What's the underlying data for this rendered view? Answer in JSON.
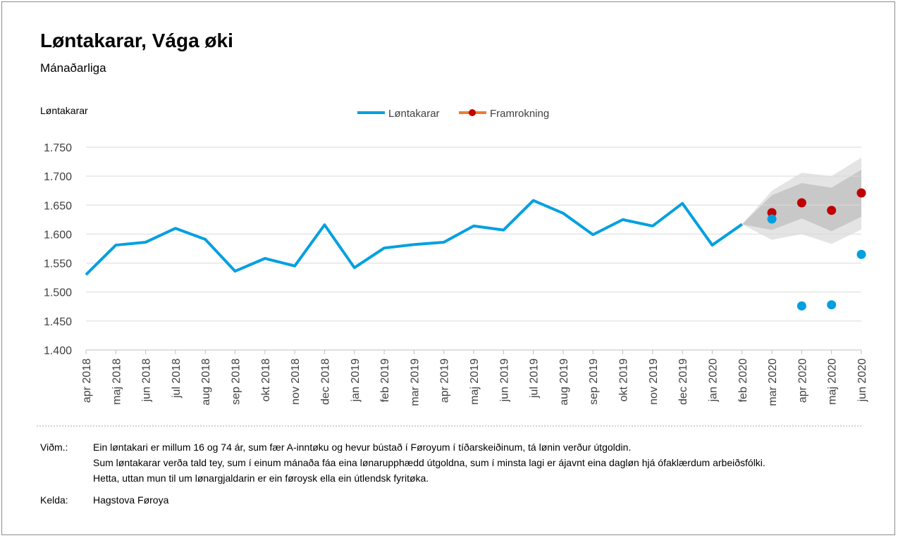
{
  "title": "Løntakarar, Vága øki",
  "subtitle": "Mánaðarliga",
  "notes": {
    "label": "Viðm.:",
    "lines": [
      "Ein løntakari er millum 16 og 74 ár, sum fær A-inntøku og hevur bústað í Føroyum í tíðarskeiðinum, tá lønin verður útgoldin.",
      "Sum løntakarar verða tald tey, sum í einum mánaða fáa eina lønarupphædd útgoldna, sum í minsta lagi er ájavnt eina dagløn hjá ófaklærdum arbeiðsfólki.",
      "Hetta, uttan mun til um lønargjaldarin er ein føroysk ella ein útlendsk fyritøka."
    ]
  },
  "source": {
    "label": "Kelda:",
    "value": "Hagstova Føroya"
  },
  "chart_data": {
    "type": "line",
    "ylabel": "Løntakarar",
    "ylim": [
      1400,
      1750
    ],
    "yticks": [
      1400,
      1450,
      1500,
      1550,
      1600,
      1650,
      1700,
      1750
    ],
    "ytick_labels": [
      "1.400",
      "1.450",
      "1.500",
      "1.550",
      "1.600",
      "1.650",
      "1.700",
      "1.750"
    ],
    "categories": [
      "apr 2018",
      "maj 2018",
      "jun 2018",
      "jul 2018",
      "aug 2018",
      "sep 2018",
      "okt 2018",
      "nov 2018",
      "dec 2018",
      "jan 2019",
      "feb 2019",
      "mar 2019",
      "apr 2019",
      "maj 2019",
      "jun 2019",
      "jul 2019",
      "aug 2019",
      "sep 2019",
      "okt 2019",
      "nov 2019",
      "dec 2019",
      "jan 2020",
      "feb 2020",
      "mar 2020",
      "apr 2020",
      "maj 2020",
      "jun 2020"
    ],
    "legend": [
      "Løntakarar",
      "Framrokning"
    ],
    "legend_position": "top",
    "grid": true,
    "colors": {
      "line": "#00a0e0",
      "forecast": "#c00000",
      "band_inner": "#c8c8c8",
      "band_outer": "#e4e4e4",
      "legend_line": "#ed7d31"
    },
    "series": [
      {
        "name": "Løntakarar",
        "style": "line",
        "values": [
          1530,
          1581,
          1586,
          1610,
          1591,
          1536,
          1558,
          1545,
          1616,
          1542,
          1576,
          1582,
          1586,
          1614,
          1607,
          1658,
          1636,
          1599,
          1625,
          1614,
          1653,
          1581,
          1617,
          null,
          null,
          null,
          null
        ]
      },
      {
        "name": "Framrokning",
        "style": "dots",
        "values": [
          null,
          null,
          null,
          null,
          null,
          null,
          null,
          null,
          null,
          null,
          null,
          null,
          null,
          null,
          null,
          null,
          null,
          null,
          null,
          null,
          null,
          null,
          null,
          1637,
          1654,
          1641,
          1671
        ]
      },
      {
        "name": "",
        "style": "dots",
        "values": [
          null,
          null,
          null,
          null,
          null,
          null,
          null,
          null,
          null,
          null,
          null,
          null,
          null,
          null,
          null,
          null,
          null,
          null,
          null,
          null,
          null,
          null,
          null,
          1626,
          1476,
          1478,
          1565
        ]
      }
    ],
    "forecast_band": {
      "start_index": 22,
      "outer_upper": [
        1617,
        1675,
        1706,
        1700,
        1732
      ],
      "outer_lower": [
        1617,
        1590,
        1600,
        1583,
        1608
      ],
      "inner_upper": [
        1617,
        1667,
        1688,
        1680,
        1711
      ],
      "inner_lower": [
        1617,
        1607,
        1627,
        1605,
        1630
      ]
    }
  }
}
